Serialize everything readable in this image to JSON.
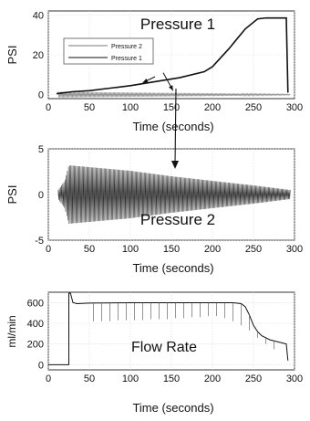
{
  "charts": [
    {
      "type": "line",
      "title": "Pressure 1",
      "xlabel": "Time (seconds)",
      "ylabel": "PSI",
      "xlim": [
        0,
        300
      ],
      "ylim": [
        -2,
        42
      ],
      "xticks": [
        0,
        50,
        100,
        150,
        200,
        250,
        300
      ],
      "yticks": [
        0,
        20,
        40
      ],
      "grid": true,
      "legend_position": "top-left",
      "series": [
        {
          "name": "Pressure 2",
          "style": "oscillating",
          "x": [
            12,
            50,
            100,
            150,
            200,
            250,
            290,
            295
          ],
          "amp": [
            1.5,
            1.3,
            1.1,
            0.9,
            0.7,
            0.5,
            0.3,
            0.2
          ],
          "y": [
            0,
            0,
            0,
            0,
            0,
            0,
            0,
            0
          ]
        },
        {
          "name": "Pressure 1",
          "style": "smooth",
          "x": [
            10,
            30,
            50,
            80,
            100,
            130,
            160,
            190,
            200,
            220,
            240,
            255,
            265,
            290,
            292
          ],
          "y": [
            0.5,
            1.5,
            2,
            3.5,
            4.5,
            6.5,
            8.5,
            11.5,
            14,
            23,
            33,
            38,
            38.5,
            38.5,
            1
          ]
        }
      ],
      "annotations": [
        {
          "label": "Pressure 2",
          "from_x": 140,
          "from_y": 11,
          "to_x": 152,
          "to_y": 2
        },
        {
          "label": "Pressure 1",
          "from_x": 130,
          "from_y": 9,
          "to_x": 115,
          "to_y": 6
        }
      ]
    },
    {
      "type": "line",
      "title": "Pressure 2",
      "xlabel": "Time (seconds)",
      "ylabel": "PSI",
      "xlim": [
        0,
        300
      ],
      "ylim": [
        -5,
        5
      ],
      "xticks": [
        0,
        50,
        100,
        150,
        200,
        250,
        300
      ],
      "yticks": [
        -5,
        0,
        5
      ],
      "grid": true,
      "series": [
        {
          "name": "",
          "style": "oscillating",
          "x": [
            12,
            20,
            25,
            50,
            100,
            150,
            200,
            250,
            295
          ],
          "amp": [
            0.5,
            1.5,
            3.2,
            3.0,
            2.6,
            2.0,
            1.5,
            1.0,
            0.5
          ],
          "y": [
            0,
            0,
            0,
            0,
            0,
            0,
            0,
            0,
            0
          ]
        }
      ]
    },
    {
      "type": "line",
      "title": "Flow Rate",
      "xlabel": "Time (seconds)",
      "ylabel": "ml/min",
      "xlim": [
        0,
        300
      ],
      "ylim": [
        -50,
        700
      ],
      "xticks": [
        0,
        50,
        100,
        150,
        200,
        250,
        300
      ],
      "yticks": [
        0,
        200,
        400,
        600
      ],
      "grid": true,
      "series": [
        {
          "name": "",
          "style": "step",
          "x": [
            0,
            25,
            25,
            27,
            30,
            35,
            50,
            100,
            150,
            200,
            225,
            235,
            240,
            245,
            250,
            255,
            260,
            270,
            280,
            290,
            292
          ],
          "y": [
            0,
            0,
            690,
            690,
            600,
            590,
            595,
            598,
            598,
            598,
            598,
            590,
            560,
            480,
            380,
            320,
            280,
            240,
            220,
            200,
            40
          ]
        }
      ],
      "spikes": {
        "x": [
          55,
          65,
          75,
          85,
          95,
          105,
          115,
          125,
          135,
          145,
          155,
          165,
          175,
          185,
          195,
          205,
          215,
          225,
          235,
          245,
          255,
          265,
          275
        ],
        "y": [
          420,
          420,
          420,
          430,
          430,
          430,
          430,
          440,
          440,
          440,
          450,
          450,
          460,
          460,
          470,
          470,
          450,
          420,
          380,
          330,
          260,
          200,
          150
        ]
      }
    }
  ]
}
